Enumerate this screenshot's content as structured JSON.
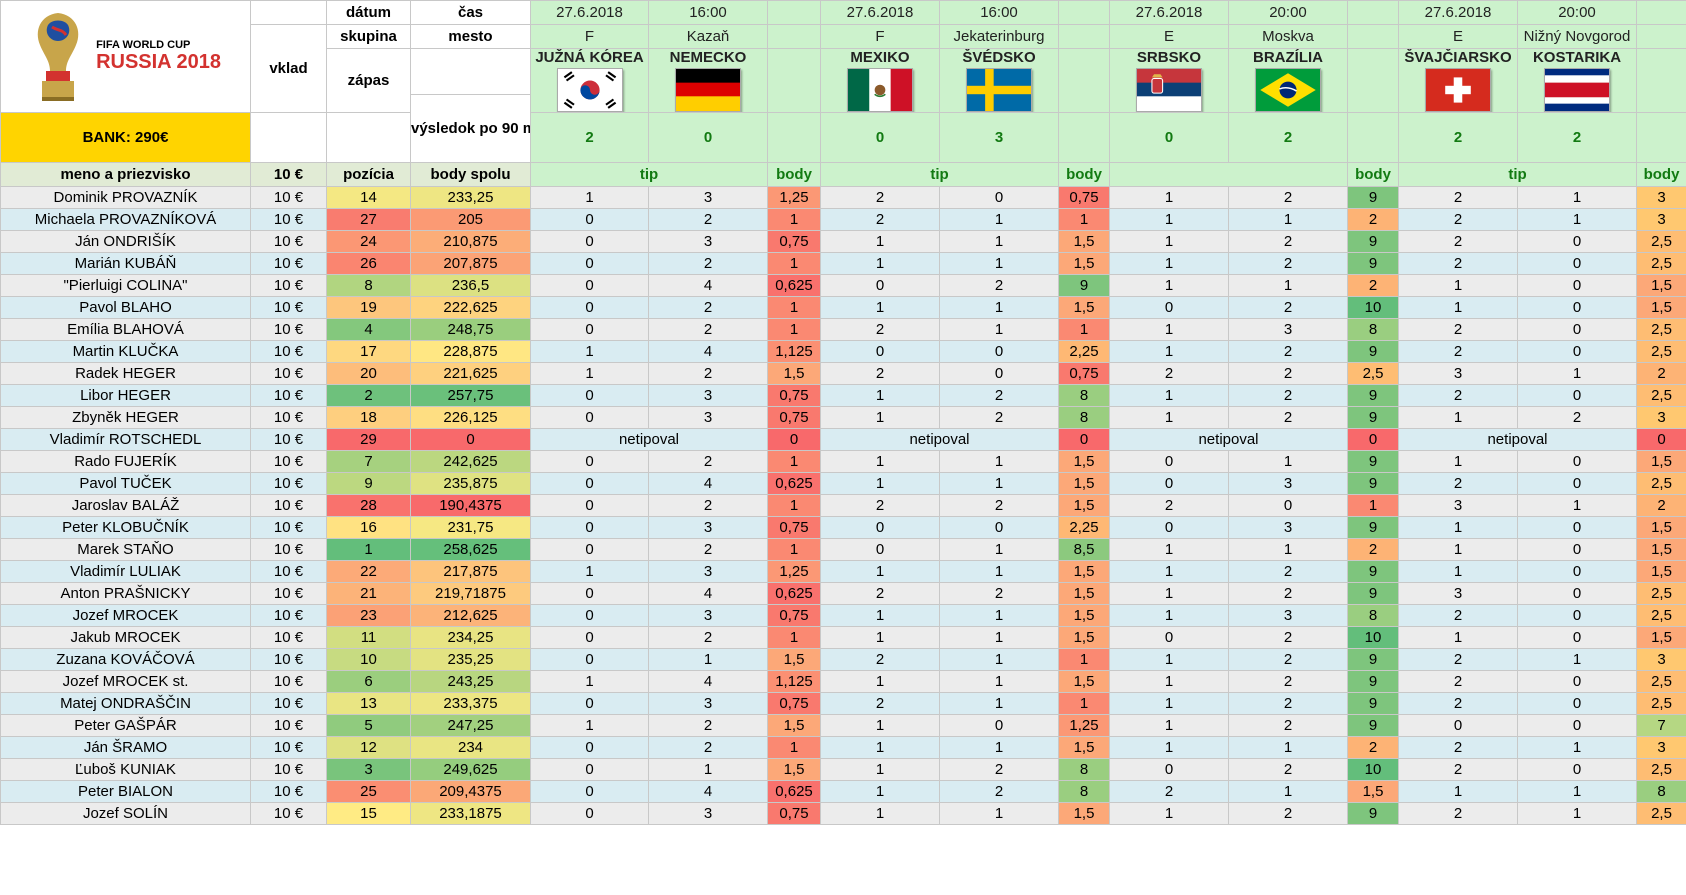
{
  "header": {
    "logo": {
      "line1": "FIFA WORLD CUP",
      "line2": "RUSSIA 2018",
      "icon": "world-cup-trophy-icon"
    },
    "bank_label": "BANK: 290€",
    "labels": {
      "datum": "dátum",
      "cas": "čas",
      "skupina": "skupina",
      "mesto": "mesto",
      "vklad": "vklad",
      "zapas": "zápas",
      "vysledok": "výsledok po 90 min.",
      "meno": "meno a priezvisko",
      "vklad_val": "10 €",
      "pozicia": "pozícia",
      "body_spolu": "body spolu",
      "tip": "tip",
      "body": "body"
    }
  },
  "matches": [
    {
      "date": "27.6.2018",
      "time": "16:00",
      "group": "F",
      "city": "Kazaň",
      "home": "JUŽNÁ KÓREA",
      "away": "NEMECKO",
      "home_flag": "south-korea",
      "away_flag": "germany",
      "home_score": "2",
      "away_score": "0"
    },
    {
      "date": "27.6.2018",
      "time": "16:00",
      "group": "F",
      "city": "Jekaterinburg",
      "home": "MEXIKO",
      "away": "ŠVÉDSKO",
      "home_flag": "mexico",
      "away_flag": "sweden",
      "home_score": "0",
      "away_score": "3"
    },
    {
      "date": "27.6.2018",
      "time": "20:00",
      "group": "E",
      "city": "Moskva",
      "home": "SRBSKO",
      "away": "BRAZÍLIA",
      "home_flag": "serbia",
      "away_flag": "brazil",
      "home_score": "0",
      "away_score": "2"
    },
    {
      "date": "27.6.2018",
      "time": "20:00",
      "group": "E",
      "city": "Nižný Novgorod",
      "home": "ŠVAJČIARSKO",
      "away": "KOSTARIKA",
      "home_flag": "switzerland",
      "away_flag": "costa-rica",
      "home_score": "2",
      "away_score": "2"
    }
  ],
  "tip_headers": [
    "tip",
    "tip",
    "",
    "tip"
  ],
  "netipoval": "netipoval",
  "stake": "10 €",
  "colors": {
    "pos_best": "#63be7b",
    "pos_mid": "#ffeb84",
    "pos_worst": "#f8696b"
  },
  "players": [
    {
      "name": "Dominik PROVAZNÍK",
      "pos": "14",
      "total": "233,25",
      "t": [
        [
          "1",
          "3",
          "1,25"
        ],
        [
          "2",
          "0",
          "0,75"
        ],
        [
          "1",
          "2",
          "9"
        ],
        [
          "2",
          "1",
          "3"
        ]
      ]
    },
    {
      "name": "Michaela PROVAZNÍKOVÁ",
      "pos": "27",
      "total": "205",
      "t": [
        [
          "0",
          "2",
          "1"
        ],
        [
          "2",
          "1",
          "1"
        ],
        [
          "1",
          "1",
          "2"
        ],
        [
          "2",
          "1",
          "3"
        ]
      ]
    },
    {
      "name": "Ján ONDRIŠÍK",
      "pos": "24",
      "total": "210,875",
      "t": [
        [
          "0",
          "3",
          "0,75"
        ],
        [
          "1",
          "1",
          "1,5"
        ],
        [
          "1",
          "2",
          "9"
        ],
        [
          "2",
          "0",
          "2,5"
        ]
      ]
    },
    {
      "name": "Marián KUBÁŇ",
      "pos": "26",
      "total": "207,875",
      "t": [
        [
          "0",
          "2",
          "1"
        ],
        [
          "1",
          "1",
          "1,5"
        ],
        [
          "1",
          "2",
          "9"
        ],
        [
          "2",
          "0",
          "2,5"
        ]
      ]
    },
    {
      "name": "\"Pierluigi COLINA\"",
      "pos": "8",
      "total": "236,5",
      "t": [
        [
          "0",
          "4",
          "0,625"
        ],
        [
          "0",
          "2",
          "9"
        ],
        [
          "1",
          "1",
          "2"
        ],
        [
          "1",
          "0",
          "1,5"
        ]
      ]
    },
    {
      "name": "Pavol BLAHO",
      "pos": "19",
      "total": "222,625",
      "t": [
        [
          "0",
          "2",
          "1"
        ],
        [
          "1",
          "1",
          "1,5"
        ],
        [
          "0",
          "2",
          "10"
        ],
        [
          "1",
          "0",
          "1,5"
        ]
      ]
    },
    {
      "name": "Emília BLAHOVÁ",
      "pos": "4",
      "total": "248,75",
      "t": [
        [
          "0",
          "2",
          "1"
        ],
        [
          "2",
          "1",
          "1"
        ],
        [
          "1",
          "3",
          "8"
        ],
        [
          "2",
          "0",
          "2,5"
        ]
      ]
    },
    {
      "name": "Martin KLUČKA",
      "pos": "17",
      "total": "228,875",
      "t": [
        [
          "1",
          "4",
          "1,125"
        ],
        [
          "0",
          "0",
          "2,25"
        ],
        [
          "1",
          "2",
          "9"
        ],
        [
          "2",
          "0",
          "2,5"
        ]
      ]
    },
    {
      "name": "Radek HEGER",
      "pos": "20",
      "total": "221,625",
      "t": [
        [
          "1",
          "2",
          "1,5"
        ],
        [
          "2",
          "0",
          "0,75"
        ],
        [
          "2",
          "2",
          "2,5"
        ],
        [
          "3",
          "1",
          "2"
        ]
      ]
    },
    {
      "name": "Libor HEGER",
      "pos": "2",
      "total": "257,75",
      "t": [
        [
          "0",
          "3",
          "0,75"
        ],
        [
          "1",
          "2",
          "8"
        ],
        [
          "1",
          "2",
          "9"
        ],
        [
          "2",
          "0",
          "2,5"
        ]
      ]
    },
    {
      "name": "Zbyněk HEGER",
      "pos": "18",
      "total": "226,125",
      "t": [
        [
          "0",
          "3",
          "0,75"
        ],
        [
          "1",
          "2",
          "8"
        ],
        [
          "1",
          "2",
          "9"
        ],
        [
          "1",
          "2",
          "3"
        ]
      ]
    },
    {
      "name": "Vladimír ROTSCHEDL",
      "pos": "29",
      "total": "0",
      "netip": true,
      "b": [
        "0",
        "0",
        "0",
        "0"
      ]
    },
    {
      "name": "Rado FUJERÍK",
      "pos": "7",
      "total": "242,625",
      "t": [
        [
          "0",
          "2",
          "1"
        ],
        [
          "1",
          "1",
          "1,5"
        ],
        [
          "0",
          "1",
          "9"
        ],
        [
          "1",
          "0",
          "1,5"
        ]
      ]
    },
    {
      "name": "Pavol TUČEK",
      "pos": "9",
      "total": "235,875",
      "t": [
        [
          "0",
          "4",
          "0,625"
        ],
        [
          "1",
          "1",
          "1,5"
        ],
        [
          "0",
          "3",
          "9"
        ],
        [
          "2",
          "0",
          "2,5"
        ]
      ]
    },
    {
      "name": "Jaroslav BALÁŽ",
      "pos": "28",
      "total": "190,4375",
      "t": [
        [
          "0",
          "2",
          "1"
        ],
        [
          "2",
          "2",
          "1,5"
        ],
        [
          "2",
          "0",
          "1"
        ],
        [
          "3",
          "1",
          "2"
        ]
      ]
    },
    {
      "name": "Peter KLOBUČNÍK",
      "pos": "16",
      "total": "231,75",
      "t": [
        [
          "0",
          "3",
          "0,75"
        ],
        [
          "0",
          "0",
          "2,25"
        ],
        [
          "0",
          "3",
          "9"
        ],
        [
          "1",
          "0",
          "1,5"
        ]
      ]
    },
    {
      "name": "Marek STAŇO",
      "pos": "1",
      "total": "258,625",
      "t": [
        [
          "0",
          "2",
          "1"
        ],
        [
          "0",
          "1",
          "8,5"
        ],
        [
          "1",
          "1",
          "2"
        ],
        [
          "1",
          "0",
          "1,5"
        ]
      ]
    },
    {
      "name": "Vladimír LULIAK",
      "pos": "22",
      "total": "217,875",
      "t": [
        [
          "1",
          "3",
          "1,25"
        ],
        [
          "1",
          "1",
          "1,5"
        ],
        [
          "1",
          "2",
          "9"
        ],
        [
          "1",
          "0",
          "1,5"
        ]
      ]
    },
    {
      "name": "Anton PRAŠNICKY",
      "pos": "21",
      "total": "219,71875",
      "t": [
        [
          "0",
          "4",
          "0,625"
        ],
        [
          "2",
          "2",
          "1,5"
        ],
        [
          "1",
          "2",
          "9"
        ],
        [
          "3",
          "0",
          "2,5"
        ]
      ]
    },
    {
      "name": "Jozef MROCEK",
      "pos": "23",
      "total": "212,625",
      "t": [
        [
          "0",
          "3",
          "0,75"
        ],
        [
          "1",
          "1",
          "1,5"
        ],
        [
          "1",
          "3",
          "8"
        ],
        [
          "2",
          "0",
          "2,5"
        ]
      ]
    },
    {
      "name": "Jakub MROCEK",
      "pos": "11",
      "total": "234,25",
      "t": [
        [
          "0",
          "2",
          "1"
        ],
        [
          "1",
          "1",
          "1,5"
        ],
        [
          "0",
          "2",
          "10"
        ],
        [
          "1",
          "0",
          "1,5"
        ]
      ]
    },
    {
      "name": "Zuzana KOVÁČOVÁ",
      "pos": "10",
      "total": "235,25",
      "t": [
        [
          "0",
          "1",
          "1,5"
        ],
        [
          "2",
          "1",
          "1"
        ],
        [
          "1",
          "2",
          "9"
        ],
        [
          "2",
          "1",
          "3"
        ]
      ]
    },
    {
      "name": "Jozef MROCEK st.",
      "pos": "6",
      "total": "243,25",
      "t": [
        [
          "1",
          "4",
          "1,125"
        ],
        [
          "1",
          "1",
          "1,5"
        ],
        [
          "1",
          "2",
          "9"
        ],
        [
          "2",
          "0",
          "2,5"
        ]
      ]
    },
    {
      "name": "Matej ONDRAŠČIN",
      "pos": "13",
      "total": "233,375",
      "t": [
        [
          "0",
          "3",
          "0,75"
        ],
        [
          "2",
          "1",
          "1"
        ],
        [
          "1",
          "2",
          "9"
        ],
        [
          "2",
          "0",
          "2,5"
        ]
      ]
    },
    {
      "name": "Peter GAŠPÁR",
      "pos": "5",
      "total": "247,25",
      "t": [
        [
          "1",
          "2",
          "1,5"
        ],
        [
          "1",
          "0",
          "1,25"
        ],
        [
          "1",
          "2",
          "9"
        ],
        [
          "0",
          "0",
          "7"
        ]
      ]
    },
    {
      "name": "Ján ŠRAMO",
      "pos": "12",
      "total": "234",
      "t": [
        [
          "0",
          "2",
          "1"
        ],
        [
          "1",
          "1",
          "1,5"
        ],
        [
          "1",
          "1",
          "2"
        ],
        [
          "2",
          "1",
          "3"
        ]
      ]
    },
    {
      "name": "Ľuboš KUNIAK",
      "pos": "3",
      "total": "249,625",
      "t": [
        [
          "0",
          "1",
          "1,5"
        ],
        [
          "1",
          "2",
          "8"
        ],
        [
          "0",
          "2",
          "10"
        ],
        [
          "2",
          "0",
          "2,5"
        ]
      ]
    },
    {
      "name": "Peter BIALON",
      "pos": "25",
      "total": "209,4375",
      "t": [
        [
          "0",
          "4",
          "0,625"
        ],
        [
          "1",
          "2",
          "8"
        ],
        [
          "2",
          "1",
          "1,5"
        ],
        [
          "1",
          "1",
          "8"
        ]
      ]
    },
    {
      "name": "Jozef SOLÍN",
      "pos": "15",
      "total": "233,1875",
      "t": [
        [
          "0",
          "3",
          "0,75"
        ],
        [
          "1",
          "1",
          "1,5"
        ],
        [
          "1",
          "2",
          "9"
        ],
        [
          "2",
          "1",
          "2,5"
        ]
      ]
    }
  ]
}
